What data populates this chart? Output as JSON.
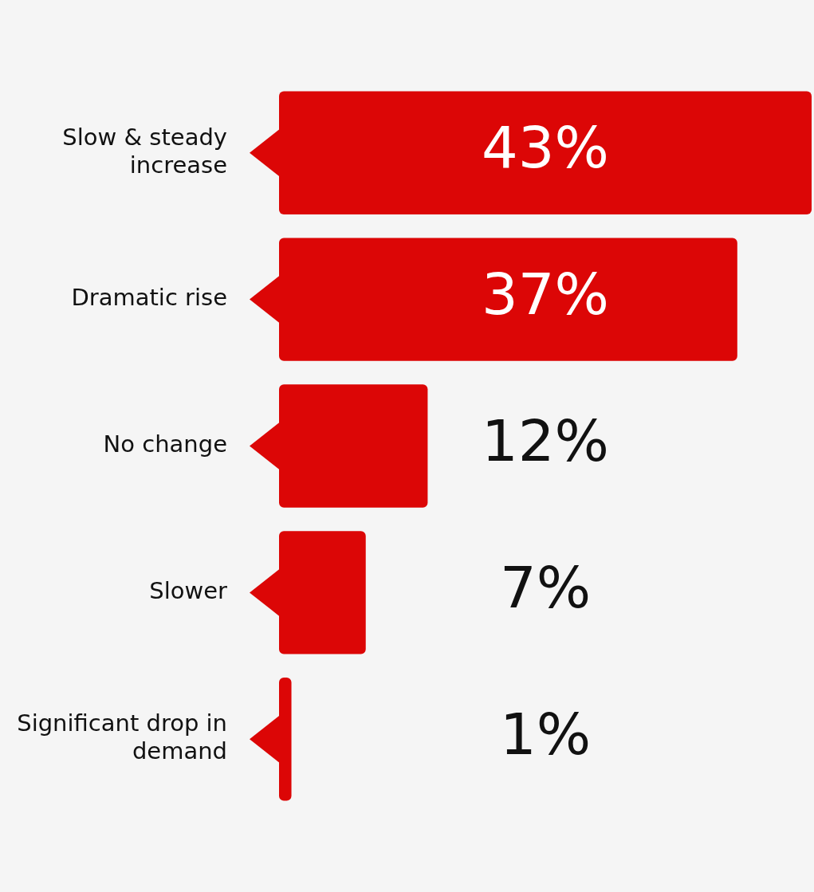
{
  "chart_data": {
    "type": "bar",
    "orientation": "horizontal",
    "categories": [
      "Slow & steady increase",
      "Dramatic rise",
      "No change",
      "Slower",
      "Significant drop in demand"
    ],
    "values": [
      43,
      37,
      12,
      7,
      1
    ],
    "value_labels": [
      "43%",
      "37%",
      "12%",
      "7%",
      "1%"
    ],
    "color": "#dc0606",
    "grid": false,
    "legend": false,
    "tick_labels": "y"
  }
}
